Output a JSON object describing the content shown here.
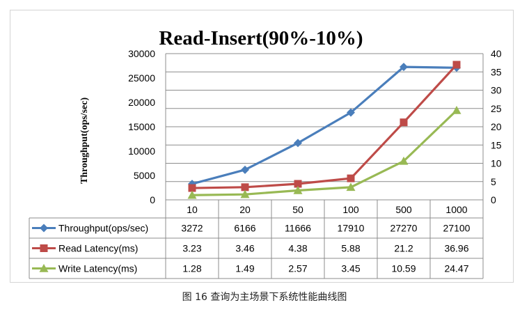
{
  "chart_data": {
    "type": "line",
    "title": "Read-Insert(90%-10%)",
    "ylabel": "Throughput(ops/sec)",
    "categories": [
      "10",
      "20",
      "50",
      "100",
      "500",
      "1000"
    ],
    "y_left": {
      "lim": [
        0,
        30000
      ],
      "ticks": [
        "0",
        "5000",
        "10000",
        "15000",
        "20000",
        "25000",
        "30000"
      ]
    },
    "y_right": {
      "lim": [
        0,
        40
      ],
      "ticks": [
        "0",
        "5",
        "10",
        "15",
        "20",
        "25",
        "30",
        "35",
        "40"
      ]
    },
    "grid": true,
    "legend": "data-table",
    "series": [
      {
        "name": "Throughput(ops/sec)",
        "axis": "left",
        "color": "#4a7ebb",
        "marker": "diamond",
        "values": [
          3272,
          6166,
          11666,
          17910,
          27270,
          27100
        ],
        "labels": [
          "3272",
          "6166",
          "11666",
          "17910",
          "27270",
          "27100"
        ]
      },
      {
        "name": "Read Latency(ms)",
        "axis": "right",
        "color": "#be4b48",
        "marker": "square",
        "values": [
          3.23,
          3.46,
          4.38,
          5.88,
          21.2,
          36.96
        ],
        "labels": [
          "3.23",
          "3.46",
          "4.38",
          "5.88",
          "21.2",
          "36.96"
        ]
      },
      {
        "name": "Write Latency(ms)",
        "axis": "right",
        "color": "#98b954",
        "marker": "triangle",
        "values": [
          1.28,
          1.49,
          2.57,
          3.45,
          10.59,
          24.47
        ],
        "labels": [
          "1.28",
          "1.49",
          "2.57",
          "3.45",
          "10.59",
          "24.47"
        ]
      }
    ]
  },
  "caption": "图 16 查询为主场景下系统性能曲线图"
}
